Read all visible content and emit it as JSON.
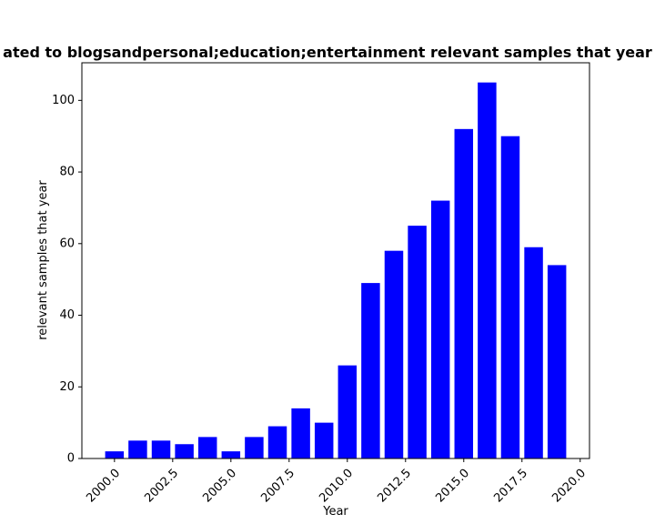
{
  "chart_data": {
    "type": "bar",
    "title": "ated to blogsandpersonal;education;entertainment relevant samples that year",
    "xlabel": "Year",
    "ylabel": "relevant samples that year",
    "x": [
      2000,
      2001,
      2002,
      2003,
      2004,
      2005,
      2006,
      2007,
      2008,
      2009,
      2010,
      2011,
      2012,
      2013,
      2014,
      2015,
      2016,
      2017,
      2018,
      2019
    ],
    "values": [
      2,
      5,
      5,
      4,
      6,
      2,
      6,
      9,
      14,
      10,
      26,
      49,
      58,
      65,
      72,
      92,
      105,
      90,
      59,
      54
    ],
    "bar_color": "#0000ff",
    "xlim": [
      1998.6,
      2020.4
    ],
    "ylim": [
      0,
      110.5
    ],
    "xticks": [
      2000,
      2002.5,
      2005,
      2007.5,
      2010,
      2012.5,
      2015,
      2017.5,
      2020
    ],
    "xtick_labels": [
      "2000.0",
      "2002.5",
      "2005.0",
      "2007.5",
      "2010.0",
      "2012.5",
      "2015.0",
      "2017.5",
      "2020.0"
    ],
    "yticks": [
      0,
      20,
      40,
      60,
      80,
      100
    ],
    "ytick_labels": [
      "0",
      "20",
      "40",
      "60",
      "80",
      "100"
    ],
    "grid": false,
    "legend": "none"
  }
}
